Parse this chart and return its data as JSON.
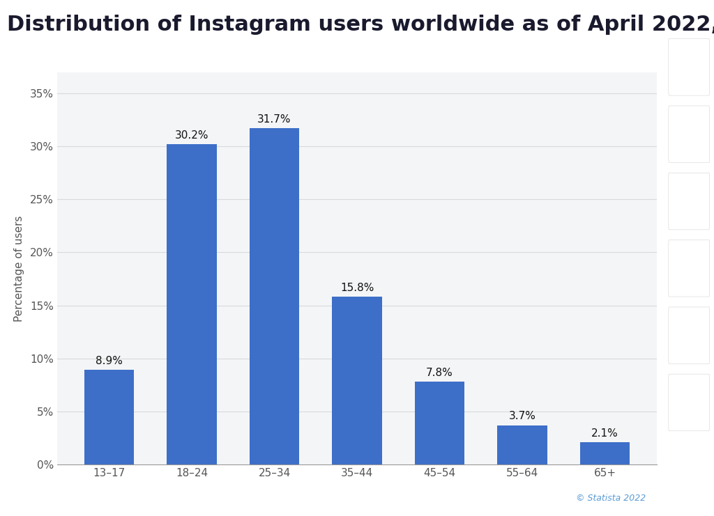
{
  "title": "Distribution of Instagram users worldwide as of April 2022,",
  "categories": [
    "13–17",
    "18–24",
    "25–34",
    "35–44",
    "45–54",
    "55–64",
    "65+"
  ],
  "values": [
    8.9,
    30.2,
    31.7,
    15.8,
    7.8,
    3.7,
    2.1
  ],
  "bar_color": "#3d6fc8",
  "ylabel": "Percentage of users",
  "ylim": [
    0,
    37
  ],
  "yticks": [
    0,
    5,
    10,
    15,
    20,
    25,
    30,
    35
  ],
  "ytick_labels": [
    "0%",
    "5%",
    "10%",
    "15%",
    "20%",
    "25%",
    "30%",
    "35%"
  ],
  "background_color": "#ffffff",
  "plot_background_color": "#f4f5f7",
  "grid_color": "#d8d9db",
  "title_fontsize": 22,
  "label_fontsize": 11,
  "tick_fontsize": 11,
  "annotation_fontsize": 11,
  "annotation_color": "#111111",
  "statista_text": "© Statista 2022",
  "statista_color": "#5b9bd5",
  "sidebar_color": "#f0f1f3",
  "sidebar_icon_color": "#2c3e6b"
}
